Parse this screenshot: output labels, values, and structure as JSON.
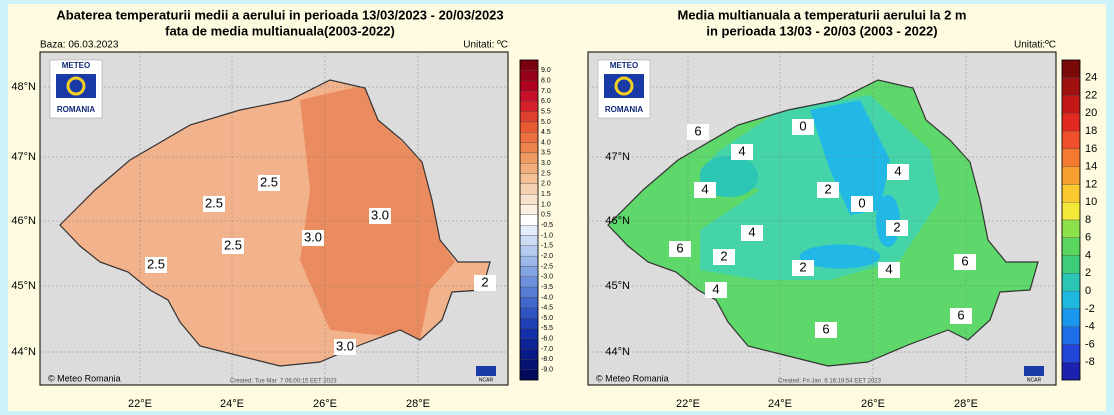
{
  "panels": [
    {
      "title_lines": [
        "Abaterea temperaturii medii a aerului in perioada 13/03/2023 - 20/03/2023",
        "fata de media multianuala(2003-2022)"
      ],
      "base": "Baza: 06.03.2023",
      "units": "Unitati: ºC",
      "logo": {
        "top": "METEO",
        "bottom": "ROMANIA"
      },
      "lat_labels": [
        "48°N",
        "47°N",
        "46°N",
        "45°N",
        "44°N"
      ],
      "lon_labels": [
        "22°E",
        "24°E",
        "26°E",
        "28°E"
      ],
      "colorbar": {
        "labels": [
          "9.0",
          "8.0",
          "7.0",
          "6.0",
          "5.5",
          "5.0",
          "4.5",
          "4.0",
          "3.5",
          "3.0",
          "2.5",
          "2.0",
          "1.5",
          "1.0",
          "0.5",
          "-0.5",
          "-1.0",
          "-1.5",
          "-2.0",
          "-2.5",
          "-3.0",
          "-3.5",
          "-4.0",
          "-4.5",
          "-5.0",
          "-5.5",
          "-6.0",
          "-7.0",
          "-8.0",
          "-9.0"
        ],
        "colors": [
          "#7a0010",
          "#960018",
          "#b0001e",
          "#c8102a",
          "#d6202c",
          "#e0402e",
          "#e85a32",
          "#ec7040",
          "#ee844c",
          "#f09a62",
          "#f2ad7c",
          "#f4c096",
          "#f6d2b2",
          "#f8e2cc",
          "#fbf0e4",
          "#ffffff",
          "#e4eefa",
          "#ccdcf4",
          "#b4caee",
          "#9cb8e8",
          "#84a4e2",
          "#6c90dc",
          "#567cd4",
          "#4268cc",
          "#3054c2",
          "#2040b6",
          "#1430a8",
          "#0c2498",
          "#081a86",
          "#041272",
          "#020a5c"
        ]
      },
      "contour_labels": [
        "2.5",
        "2.5",
        "2.5",
        "2.5",
        "3.0",
        "3.0",
        "3.0",
        "2"
      ],
      "copyright": "© Meteo Romania",
      "created": "Created: Tue Mar  7 06:00:15 EET 2023",
      "ncar": "NCAR"
    },
    {
      "title_lines": [
        "Media multianuala a temperaturii aerului la 2 m",
        "in perioada 13/03 - 20/03 (2003 - 2022)"
      ],
      "units": "Unitati:ºC",
      "logo": {
        "top": "METEO",
        "bottom": "ROMANIA"
      },
      "lat_labels": [
        "48°N",
        "47°N",
        "46°N",
        "45°N",
        "44°N"
      ],
      "lon_labels": [
        "22°E",
        "24°E",
        "26°E",
        "28°E"
      ],
      "colorbar": {
        "labels": [
          "24",
          "22",
          "20",
          "18",
          "16",
          "14",
          "12",
          "10",
          "8",
          "6",
          "4",
          "2",
          "0",
          "-2",
          "-4",
          "-6",
          "-8"
        ],
        "colors": [
          "#7a0a0a",
          "#a01010",
          "#c41818",
          "#e02a20",
          "#f0502a",
          "#f47a30",
          "#f8a030",
          "#fcc830",
          "#f4e83a",
          "#8ce04a",
          "#5ad65e",
          "#3ccc7a",
          "#2cc6b4",
          "#1eb8e0",
          "#1a96ec",
          "#1e6ee8",
          "#2246d8",
          "#1c22b0"
        ]
      },
      "contour_labels": [
        "0",
        "4",
        "6",
        "4",
        "2",
        "0",
        "4",
        "4",
        "2",
        "6",
        "2",
        "4",
        "2",
        "4",
        "6",
        "6",
        "6"
      ],
      "copyright": "© Meteo Romania",
      "created": "Created: Fri Jan  6 16:19:54 EET 2023",
      "ncar": "NCAR"
    }
  ]
}
